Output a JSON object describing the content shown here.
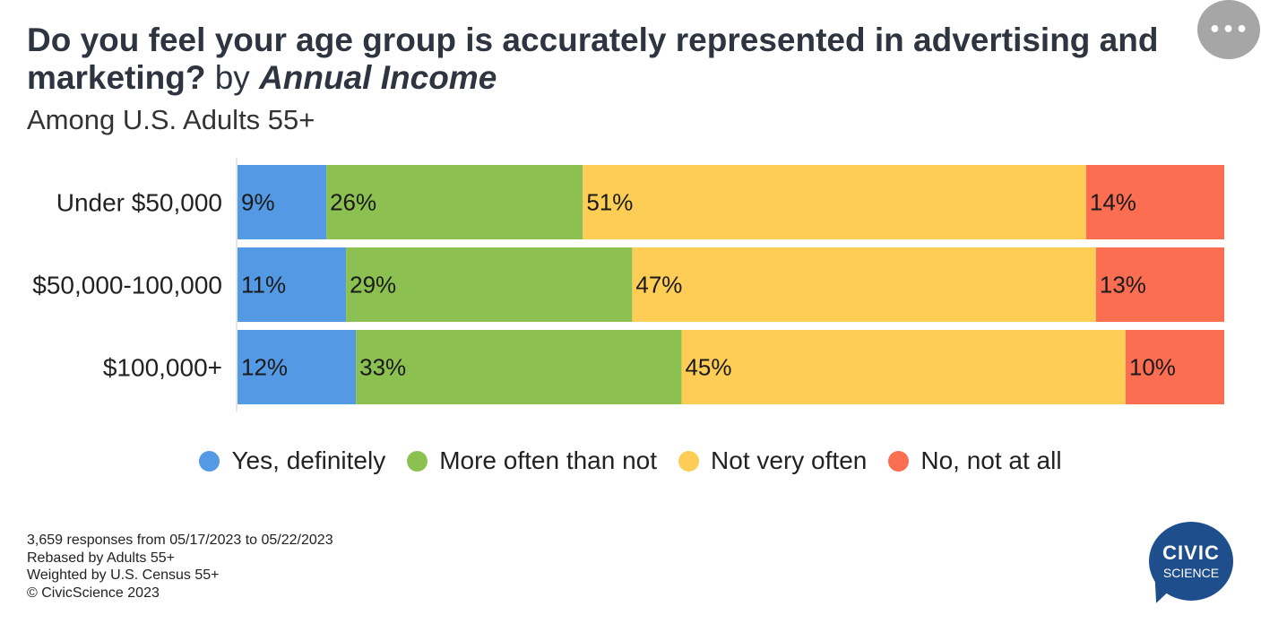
{
  "header": {
    "title_main": "Do you feel your age group is accurately represented in advertising and marketing?",
    "title_by": "by",
    "title_dimension": "Annual Income",
    "subtitle": "Among U.S. Adults 55+",
    "menu_label": "•••"
  },
  "chart_data": {
    "type": "bar",
    "orientation": "horizontal",
    "stacked": true,
    "title": "Do you feel your age group is accurately represented in advertising and marketing? by Annual Income",
    "subtitle": "Among U.S. Adults 55+",
    "categories": [
      "Under $50,000",
      "$50,000-100,000",
      "$100,000+"
    ],
    "series": [
      {
        "name": "Yes, definitely",
        "color": "#5499e3",
        "values": [
          9,
          11,
          12
        ],
        "labels": [
          "9%",
          "11%",
          "12%"
        ]
      },
      {
        "name": "More often than not",
        "color": "#8cc152",
        "values": [
          26,
          29,
          33
        ],
        "labels": [
          "26%",
          "29%",
          "33%"
        ]
      },
      {
        "name": "Not very often",
        "color": "#fdcd56",
        "values": [
          51,
          47,
          45
        ],
        "labels": [
          "51%",
          "47%",
          "45%"
        ]
      },
      {
        "name": "No, not at all",
        "color": "#fc6e51",
        "values": [
          14,
          13,
          10
        ],
        "labels": [
          "14%",
          "13%",
          "10%"
        ]
      }
    ],
    "xlim": [
      0,
      100
    ],
    "unit": "%",
    "legend_position": "bottom"
  },
  "legend": {
    "items": [
      {
        "label": "Yes, definitely",
        "color": "#5499e3"
      },
      {
        "label": "More often than not",
        "color": "#8cc152"
      },
      {
        "label": "Not very often",
        "color": "#fdcd56"
      },
      {
        "label": "No, not at all",
        "color": "#fc6e51"
      }
    ]
  },
  "footnotes": {
    "responses": "3,659 responses from 05/17/2023 to 05/22/2023",
    "rebased": "Rebased by Adults 55+",
    "weighted": "Weighted by U.S. Census 55+",
    "copyright": "© CivicScience 2023"
  },
  "logo": {
    "line1": "CIVIC",
    "line2": "SCIENCE"
  }
}
